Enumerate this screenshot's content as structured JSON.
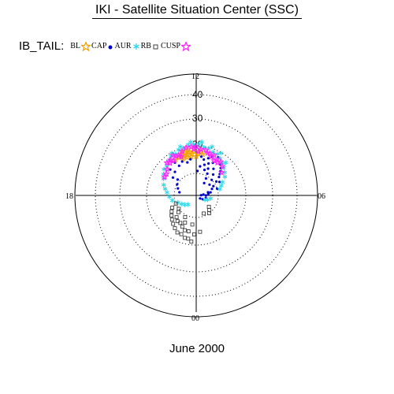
{
  "header": {
    "title": "IKI - Satellite Situation Center (SSC)"
  },
  "legend": {
    "title": "IB_TAIL:",
    "items": [
      {
        "label": "BL",
        "symbol": "star-outline",
        "color": "#f0a000"
      },
      {
        "label": "CAP",
        "symbol": "dot",
        "color": "#0000c8"
      },
      {
        "label": "AUR",
        "symbol": "asterisk",
        "color": "#30d8e8"
      },
      {
        "label": "RB",
        "symbol": "square",
        "color": "#404040"
      },
      {
        "label": "CUSP",
        "symbol": "star-outline",
        "color": "#ff20ff"
      }
    ]
  },
  "footer": {
    "date": "June 2000"
  },
  "chart_data": {
    "type": "scatter",
    "projection": "polar (magnetic local time vs. latitude circles)",
    "radial_ticks": [
      "12",
      "20",
      "30",
      "40"
    ],
    "mlt_labels": {
      "top": "12",
      "bottom": "00",
      "left": "18",
      "right": "06"
    },
    "series": [
      {
        "name": "BL",
        "color": "#f0a000",
        "points": [
          [
            12.6,
            18
          ],
          [
            12.8,
            17
          ],
          [
            13.0,
            18
          ],
          [
            13.2,
            17
          ],
          [
            12.4,
            17
          ],
          [
            12.9,
            16
          ],
          [
            13.4,
            18
          ],
          [
            12.7,
            19
          ],
          [
            13.1,
            19
          ],
          [
            12.5,
            16
          ],
          [
            13.3,
            16
          ],
          [
            12.2,
            18
          ],
          [
            11.8,
            17
          ],
          [
            11.6,
            18
          ],
          [
            12.0,
            16
          ],
          [
            14.0,
            17
          ],
          [
            13.6,
            17
          ],
          [
            11.4,
            17
          ]
        ]
      },
      {
        "name": "CAP",
        "color": "#0000c8",
        "points": [
          [
            14.5,
            18
          ],
          [
            15.0,
            15
          ],
          [
            15.5,
            12
          ],
          [
            16.0,
            9
          ],
          [
            16.6,
            8
          ],
          [
            17.3,
            7
          ],
          [
            14.2,
            16
          ],
          [
            14.8,
            13
          ],
          [
            15.3,
            10
          ],
          [
            10.0,
            18
          ],
          [
            9.5,
            16
          ],
          [
            9.0,
            14
          ],
          [
            8.6,
            12
          ],
          [
            8.3,
            10
          ],
          [
            7.9,
            8
          ],
          [
            7.5,
            7
          ],
          [
            10.5,
            17
          ],
          [
            10.2,
            15
          ],
          [
            9.8,
            13
          ],
          [
            9.4,
            11
          ],
          [
            9.0,
            9
          ],
          [
            8.6,
            7
          ],
          [
            10.8,
            16
          ],
          [
            10.6,
            14
          ],
          [
            10.4,
            12
          ],
          [
            10.2,
            10
          ],
          [
            10.0,
            8
          ],
          [
            9.8,
            6
          ],
          [
            6.8,
            6
          ],
          [
            6.5,
            5
          ],
          [
            6.0,
            4
          ],
          [
            5.0,
            4
          ],
          [
            4.0,
            3
          ],
          [
            6.2,
            2
          ],
          [
            7.0,
            5
          ],
          [
            11.2,
            15
          ],
          [
            11.0,
            13
          ],
          [
            10.8,
            11
          ],
          [
            11.5,
            12
          ],
          [
            11.8,
            10
          ],
          [
            12.6,
            15
          ],
          [
            13.0,
            14
          ],
          [
            13.5,
            15
          ],
          [
            14.0,
            14
          ],
          [
            11.5,
            16
          ],
          [
            9.2,
            15
          ],
          [
            8.8,
            13
          ],
          [
            7.2,
            9
          ],
          [
            8.0,
            11
          ],
          [
            6.5,
            3
          ],
          [
            3.5,
            2
          ]
        ]
      },
      {
        "name": "AUR",
        "color": "#30d8e8",
        "points": [
          [
            15.0,
            17
          ],
          [
            15.4,
            17
          ],
          [
            14.6,
            18
          ],
          [
            14.2,
            19
          ],
          [
            13.8,
            19
          ],
          [
            13.4,
            20
          ],
          [
            13.0,
            20
          ],
          [
            12.6,
            21
          ],
          [
            12.2,
            21
          ],
          [
            11.8,
            21
          ],
          [
            11.4,
            20
          ],
          [
            11.0,
            20
          ],
          [
            10.6,
            19
          ],
          [
            10.2,
            19
          ],
          [
            9.8,
            18
          ],
          [
            9.4,
            17
          ],
          [
            9.0,
            16
          ],
          [
            8.6,
            15
          ],
          [
            8.2,
            14
          ],
          [
            7.8,
            12
          ],
          [
            7.4,
            11
          ],
          [
            7.0,
            10
          ],
          [
            14.0,
            20
          ],
          [
            13.2,
            21
          ],
          [
            12.4,
            22
          ],
          [
            11.6,
            22
          ],
          [
            10.8,
            21
          ],
          [
            10.0,
            20
          ],
          [
            9.2,
            18
          ],
          [
            15.8,
            16
          ],
          [
            16.2,
            15
          ],
          [
            16.8,
            14
          ],
          [
            17.2,
            13
          ],
          [
            17.6,
            12
          ],
          [
            18.2,
            11
          ],
          [
            18.8,
            10
          ],
          [
            19.4,
            8
          ],
          [
            20.0,
            7
          ],
          [
            20.6,
            6
          ],
          [
            21.2,
            5
          ],
          [
            4.2,
            4
          ],
          [
            4.6,
            5
          ],
          [
            5.2,
            6
          ]
        ]
      },
      {
        "name": "RB",
        "color": "#404040",
        "points": [
          [
            19.8,
            11
          ],
          [
            20.2,
            12
          ],
          [
            20.6,
            13
          ],
          [
            21.0,
            14
          ],
          [
            21.4,
            15
          ],
          [
            21.8,
            16
          ],
          [
            22.2,
            17
          ],
          [
            22.6,
            17
          ],
          [
            23.0,
            18
          ],
          [
            23.3,
            18
          ],
          [
            23.6,
            19
          ],
          [
            22.0,
            13
          ],
          [
            22.4,
            14
          ],
          [
            22.8,
            15
          ],
          [
            23.2,
            15
          ],
          [
            21.2,
            12
          ],
          [
            21.6,
            13
          ],
          [
            20.9,
            10
          ],
          [
            22.5,
            12
          ],
          [
            23.8,
            16
          ],
          [
            0.4,
            15
          ],
          [
            2.8,
            8
          ],
          [
            2.4,
            9
          ],
          [
            3.2,
            7
          ],
          [
            1.5,
            8
          ],
          [
            20.5,
            9
          ],
          [
            19.5,
            9
          ],
          [
            23.5,
            12
          ],
          [
            22.2,
            10
          ]
        ]
      },
      {
        "name": "CUSP",
        "color": "#ff20ff",
        "points": [
          [
            14.8,
            18
          ],
          [
            14.4,
            18
          ],
          [
            14.0,
            19
          ],
          [
            13.6,
            18
          ],
          [
            13.2,
            19
          ],
          [
            12.8,
            20
          ],
          [
            12.4,
            20
          ],
          [
            12.0,
            20
          ],
          [
            11.6,
            19
          ],
          [
            11.2,
            19
          ],
          [
            10.8,
            18
          ],
          [
            10.4,
            18
          ],
          [
            10.0,
            17
          ],
          [
            9.6,
            17
          ],
          [
            14.6,
            17
          ],
          [
            14.2,
            17
          ],
          [
            13.8,
            18
          ],
          [
            11.0,
            18
          ],
          [
            10.6,
            17
          ],
          [
            10.2,
            16
          ],
          [
            9.8,
            16
          ],
          [
            12.2,
            19
          ],
          [
            11.8,
            18
          ],
          [
            13.4,
            17
          ],
          [
            15.2,
            16
          ],
          [
            9.2,
            16
          ],
          [
            8.8,
            14
          ],
          [
            15.6,
            15
          ],
          [
            16.0,
            15
          ]
        ]
      }
    ]
  }
}
